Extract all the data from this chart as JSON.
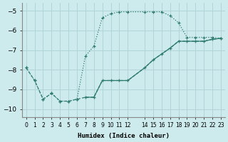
{
  "xlabel": "Humidex (Indice chaleur)",
  "background_color": "#cdeaec",
  "grid_color": "#b0d4d8",
  "line_color": "#2d7a6e",
  "xlim": [
    -0.5,
    23.5
  ],
  "ylim": [
    -10.4,
    -4.6
  ],
  "yticks": [
    -10,
    -9,
    -8,
    -7,
    -6,
    -5
  ],
  "xtick_positions": [
    0,
    1,
    2,
    3,
    4,
    5,
    6,
    7,
    8,
    9,
    10,
    11,
    12,
    14,
    15,
    16,
    17,
    18,
    19,
    20,
    21,
    22,
    23
  ],
  "xtick_labels": [
    "0",
    "1",
    "2",
    "3",
    "4",
    "5",
    "6",
    "7",
    "8",
    "9",
    "10",
    "11",
    "12",
    "14",
    "15",
    "16",
    "17",
    "18",
    "19",
    "20",
    "21",
    "22",
    "23"
  ],
  "curve_dotted_x": [
    0,
    1,
    2,
    3,
    4,
    5,
    6,
    7,
    8,
    9,
    10,
    11,
    12,
    14,
    15,
    16,
    17,
    18,
    19,
    20,
    21,
    22,
    23
  ],
  "curve_dotted_y": [
    -7.9,
    -8.55,
    -9.5,
    -9.2,
    -9.6,
    -9.6,
    -9.5,
    -7.3,
    -6.8,
    -5.35,
    -5.15,
    -5.05,
    -5.05,
    -5.05,
    -5.05,
    -5.05,
    -5.25,
    -5.6,
    -6.35,
    -6.35,
    -6.35,
    -6.35,
    -6.4
  ],
  "curve_dashed_x": [
    0,
    1,
    2,
    3,
    4,
    5,
    6,
    7,
    8,
    9,
    10,
    11,
    12,
    14,
    15,
    16,
    17,
    18,
    19,
    20,
    21,
    22,
    23
  ],
  "curve_dashed_y": [
    -7.9,
    -8.55,
    -9.5,
    -9.2,
    -9.6,
    -9.6,
    -9.5,
    -9.4,
    -9.4,
    -8.55,
    -8.55,
    -8.55,
    -8.55,
    -7.9,
    -7.5,
    -7.2,
    -6.9,
    -6.55,
    -6.55,
    -6.55,
    -6.55,
    -6.45,
    -6.4
  ],
  "curve_solid_x": [
    7,
    8,
    9,
    10,
    11,
    12,
    14,
    15,
    16,
    17,
    18,
    19,
    20,
    21,
    22,
    23
  ],
  "curve_solid_y": [
    -9.4,
    -9.4,
    -8.55,
    -8.55,
    -8.55,
    -8.55,
    -7.9,
    -7.5,
    -7.2,
    -6.9,
    -6.55,
    -6.55,
    -6.55,
    -6.55,
    -6.45,
    -6.4
  ]
}
